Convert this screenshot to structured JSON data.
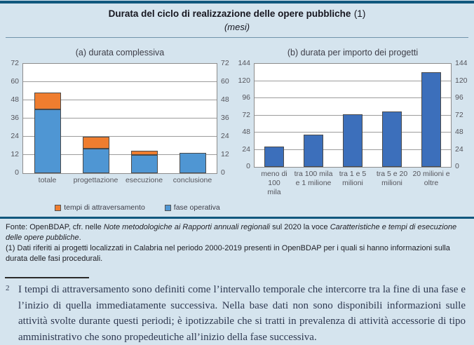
{
  "figure": {
    "title": "Durata del ciclo di realizzazione delle opere pubbliche",
    "title_ref": "(1)",
    "subtitle": "(mesi)"
  },
  "colors": {
    "background": "#d5e4ee",
    "rule_dark": "#11587e",
    "rule_light": "#7094ab",
    "bar_blue_light": "#4f96d3",
    "bar_orange": "#ef7d2f",
    "bar_blue_dark": "#3c6fbb",
    "grid": "#9c9c9c"
  },
  "chart_data": [
    {
      "type": "bar",
      "stacked": true,
      "title": "(a) durata complessiva",
      "categories": [
        "totale",
        "progettazione",
        "esecuzione",
        "conclusione"
      ],
      "series": [
        {
          "name": "fase operativa",
          "color_key": "bar_blue_light",
          "values": [
            42,
            16,
            12,
            13.5
          ]
        },
        {
          "name": "tempi di attraversamento",
          "color_key": "bar_orange",
          "values": [
            11,
            8,
            3,
            0
          ]
        }
      ],
      "ylim": [
        0,
        72
      ],
      "yticks": [
        0,
        12,
        24,
        36,
        48,
        60,
        72
      ],
      "grid": true,
      "legend_position": "bottom"
    },
    {
      "type": "bar",
      "stacked": false,
      "title": "(b) durata per importo dei progetti",
      "categories": [
        "meno di 100\nmila",
        "tra 100 mila\ne 1 milione",
        "tra 1 e 5\nmilioni",
        "tra 5 e 20\nmilioni",
        "20 milioni e\noltre"
      ],
      "series": [
        {
          "name": "durata",
          "color_key": "bar_blue_dark",
          "values": [
            28,
            45,
            73,
            77,
            132
          ]
        }
      ],
      "ylim": [
        0,
        144
      ],
      "yticks": [
        0,
        24,
        48,
        72,
        96,
        120,
        144
      ],
      "grid": true,
      "legend_position": "none"
    }
  ],
  "legend": {
    "items": [
      {
        "label": "tempi di attraversamento",
        "color_key": "bar_orange"
      },
      {
        "label": "fase operativa",
        "color_key": "bar_blue_light"
      }
    ]
  },
  "footer": {
    "source_segments": [
      {
        "text": "Fonte: OpenBDAP, cfr. nelle ",
        "italic": false
      },
      {
        "text": "Note metodologiche ai Rapporti annuali regionali",
        "italic": true
      },
      {
        "text": " sul 2020 la voce ",
        "italic": false
      },
      {
        "text": "Caratteristiche e tempi di esecuzione delle opere pubbliche",
        "italic": true
      },
      {
        "text": ".",
        "italic": false
      }
    ],
    "note1": "(1) Dati riferiti ai progetti localizzati in Calabria nel periodo 2000-2019 presenti in OpenBDAP per i quali si hanno informazioni sulla durata delle fasi procedurali."
  },
  "footnote": {
    "number": "2",
    "text": "I tempi di attraversamento sono definiti come l’intervallo temporale che intercorre tra la fine di una fase e l’inizio di quella immediatamente successiva. Nella base dati non sono disponibili informazioni sulle attività svolte durante questi periodi; è ipotizzabile che si tratti in prevalenza di attività accessorie di tipo amministrativo che sono propedeutiche all’inizio della fase successiva."
  }
}
